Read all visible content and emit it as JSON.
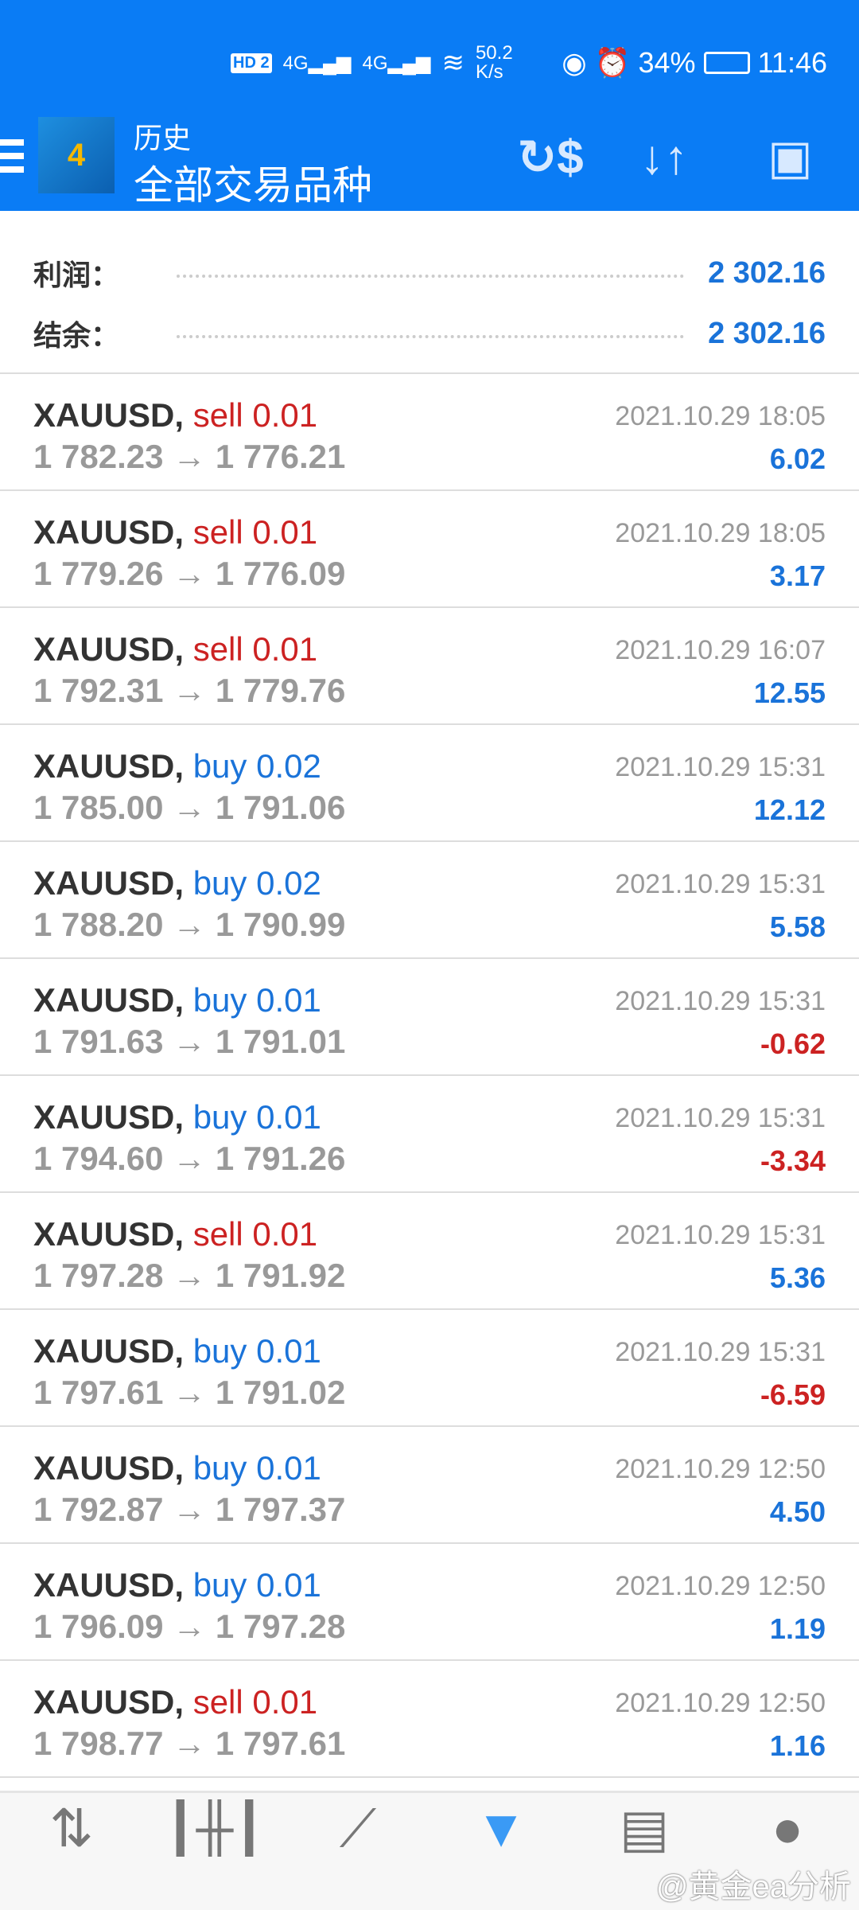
{
  "status": {
    "net": "HD 2",
    "sig1": "4G",
    "sig2": "4G",
    "speed": "50.2 K/s",
    "battery": "34%",
    "time": "11:46"
  },
  "header": {
    "title": "历史",
    "subtitle": "全部交易品种"
  },
  "summary": {
    "profit_label": "利润：",
    "profit": "2 302.16",
    "balance_label": "结余：",
    "balance": "2 302.16"
  },
  "trades": [
    {
      "symbol": "XAUUSD,",
      "side": "sell",
      "vol": "0.01",
      "open": "1 782.23",
      "close": "1 776.21",
      "time": "2021.10.29 18:05",
      "profit": "6.02"
    },
    {
      "symbol": "XAUUSD,",
      "side": "sell",
      "vol": "0.01",
      "open": "1 779.26",
      "close": "1 776.09",
      "time": "2021.10.29 18:05",
      "profit": "3.17"
    },
    {
      "symbol": "XAUUSD,",
      "side": "sell",
      "vol": "0.01",
      "open": "1 792.31",
      "close": "1 779.76",
      "time": "2021.10.29 16:07",
      "profit": "12.55"
    },
    {
      "symbol": "XAUUSD,",
      "side": "buy",
      "vol": "0.02",
      "open": "1 785.00",
      "close": "1 791.06",
      "time": "2021.10.29 15:31",
      "profit": "12.12"
    },
    {
      "symbol": "XAUUSD,",
      "side": "buy",
      "vol": "0.02",
      "open": "1 788.20",
      "close": "1 790.99",
      "time": "2021.10.29 15:31",
      "profit": "5.58"
    },
    {
      "symbol": "XAUUSD,",
      "side": "buy",
      "vol": "0.01",
      "open": "1 791.63",
      "close": "1 791.01",
      "time": "2021.10.29 15:31",
      "profit": "-0.62"
    },
    {
      "symbol": "XAUUSD,",
      "side": "buy",
      "vol": "0.01",
      "open": "1 794.60",
      "close": "1 791.26",
      "time": "2021.10.29 15:31",
      "profit": "-3.34"
    },
    {
      "symbol": "XAUUSD,",
      "side": "sell",
      "vol": "0.01",
      "open": "1 797.28",
      "close": "1 791.92",
      "time": "2021.10.29 15:31",
      "profit": "5.36"
    },
    {
      "symbol": "XAUUSD,",
      "side": "buy",
      "vol": "0.01",
      "open": "1 797.61",
      "close": "1 791.02",
      "time": "2021.10.29 15:31",
      "profit": "-6.59"
    },
    {
      "symbol": "XAUUSD,",
      "side": "buy",
      "vol": "0.01",
      "open": "1 792.87",
      "close": "1 797.37",
      "time": "2021.10.29 12:50",
      "profit": "4.50"
    },
    {
      "symbol": "XAUUSD,",
      "side": "buy",
      "vol": "0.01",
      "open": "1 796.09",
      "close": "1 797.28",
      "time": "2021.10.29 12:50",
      "profit": "1.19"
    },
    {
      "symbol": "XAUUSD,",
      "side": "sell",
      "vol": "0.01",
      "open": "1 798.77",
      "close": "1 797.61",
      "time": "2021.10.29 12:50",
      "profit": "1.16"
    }
  ],
  "arrow": "→",
  "nav": [
    "quotes-icon",
    "chart-icon",
    "trade-icon",
    "history-icon",
    "news-icon",
    "chat-icon"
  ],
  "watermark": "@黄金ea分析",
  "colors": {
    "accent": "#0a7cf5",
    "buy": "#1a73d9",
    "sell": "#cc2222"
  }
}
